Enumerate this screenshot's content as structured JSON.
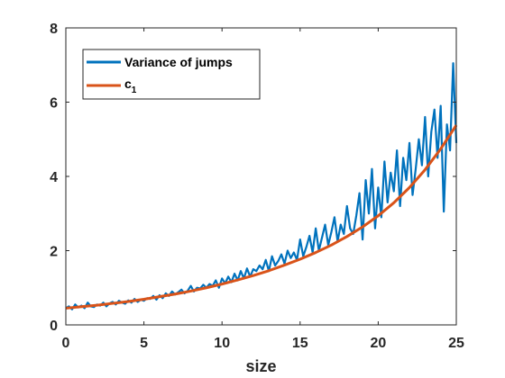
{
  "chart_data": {
    "type": "line",
    "title": "",
    "xlabel": "size",
    "ylabel": "",
    "xlim": [
      0,
      25
    ],
    "ylim": [
      0,
      8
    ],
    "xticks": [
      0,
      5,
      10,
      15,
      20,
      25
    ],
    "yticks": [
      0,
      2,
      4,
      6,
      8
    ],
    "grid": false,
    "legend_position": "top-left",
    "series": [
      {
        "name": "Variance of jumps",
        "color": "#0072BD",
        "x": [
          0.0,
          0.2,
          0.4,
          0.6,
          0.8,
          1.0,
          1.2,
          1.4,
          1.6,
          1.8,
          2.0,
          2.2,
          2.4,
          2.6,
          2.8,
          3.0,
          3.2,
          3.4,
          3.6,
          3.8,
          4.0,
          4.2,
          4.4,
          4.6,
          4.8,
          5.0,
          5.2,
          5.4,
          5.6,
          5.8,
          6.0,
          6.2,
          6.4,
          6.6,
          6.8,
          7.0,
          7.2,
          7.4,
          7.6,
          7.8,
          8.0,
          8.2,
          8.4,
          8.6,
          8.8,
          9.0,
          9.2,
          9.4,
          9.6,
          9.8,
          10.0,
          10.2,
          10.4,
          10.6,
          10.8,
          11.0,
          11.2,
          11.4,
          11.6,
          11.8,
          12.0,
          12.2,
          12.4,
          12.6,
          12.8,
          13.0,
          13.2,
          13.4,
          13.6,
          13.8,
          14.0,
          14.2,
          14.4,
          14.6,
          14.8,
          15.0,
          15.2,
          15.4,
          15.6,
          15.8,
          16.0,
          16.2,
          16.4,
          16.6,
          16.8,
          17.0,
          17.2,
          17.4,
          17.6,
          17.8,
          18.0,
          18.2,
          18.4,
          18.6,
          18.8,
          19.0,
          19.2,
          19.4,
          19.6,
          19.8,
          20.0,
          20.2,
          20.4,
          20.6,
          20.8,
          21.0,
          21.2,
          21.4,
          21.6,
          21.8,
          22.0,
          22.2,
          22.4,
          22.6,
          22.8,
          23.0,
          23.2,
          23.4,
          23.6,
          23.8,
          24.0,
          24.2,
          24.4,
          24.6,
          24.8,
          25.0
        ],
        "values": [
          0.45,
          0.5,
          0.42,
          0.55,
          0.47,
          0.52,
          0.45,
          0.6,
          0.5,
          0.48,
          0.55,
          0.52,
          0.6,
          0.5,
          0.58,
          0.62,
          0.55,
          0.65,
          0.6,
          0.57,
          0.66,
          0.6,
          0.7,
          0.62,
          0.68,
          0.65,
          0.72,
          0.7,
          0.78,
          0.68,
          0.8,
          0.72,
          0.85,
          0.78,
          0.9,
          0.82,
          0.88,
          0.95,
          0.85,
          0.92,
          1.05,
          0.9,
          1.0,
          0.98,
          1.08,
          1.0,
          1.1,
          1.05,
          1.2,
          1.0,
          1.25,
          1.12,
          1.3,
          1.15,
          1.38,
          1.2,
          1.45,
          1.25,
          1.52,
          1.3,
          1.5,
          1.45,
          1.6,
          1.5,
          1.75,
          1.45,
          1.85,
          1.6,
          1.72,
          1.9,
          1.65,
          2.0,
          1.8,
          1.95,
          1.75,
          2.3,
          1.85,
          2.1,
          2.4,
          1.95,
          2.6,
          2.0,
          2.35,
          2.7,
          2.15,
          2.5,
          2.9,
          2.25,
          2.7,
          2.45,
          3.2,
          2.6,
          2.45,
          2.95,
          3.55,
          2.3,
          3.9,
          3.0,
          4.2,
          2.6,
          3.7,
          2.9,
          4.4,
          3.3,
          4.1,
          3.6,
          4.7,
          3.2,
          4.5,
          3.9,
          4.9,
          3.5,
          4.2,
          5.0,
          4.3,
          5.6,
          4.0,
          5.2,
          5.8,
          4.5,
          5.9,
          3.05,
          5.4,
          4.7,
          7.05,
          4.9
        ]
      },
      {
        "name": "c",
        "name_subscript": "1",
        "color": "#D95319",
        "x": [
          0,
          1,
          2,
          3,
          4,
          5,
          6,
          7,
          8,
          9,
          10,
          11,
          12,
          13,
          14,
          15,
          16,
          17,
          18,
          19,
          20,
          21,
          22,
          23,
          24,
          25
        ],
        "values": [
          0.45,
          0.49,
          0.53,
          0.58,
          0.63,
          0.69,
          0.76,
          0.83,
          0.91,
          1.0,
          1.1,
          1.21,
          1.33,
          1.46,
          1.61,
          1.77,
          1.95,
          2.15,
          2.38,
          2.64,
          2.94,
          3.29,
          3.7,
          4.18,
          4.74,
          5.38
        ]
      }
    ]
  }
}
